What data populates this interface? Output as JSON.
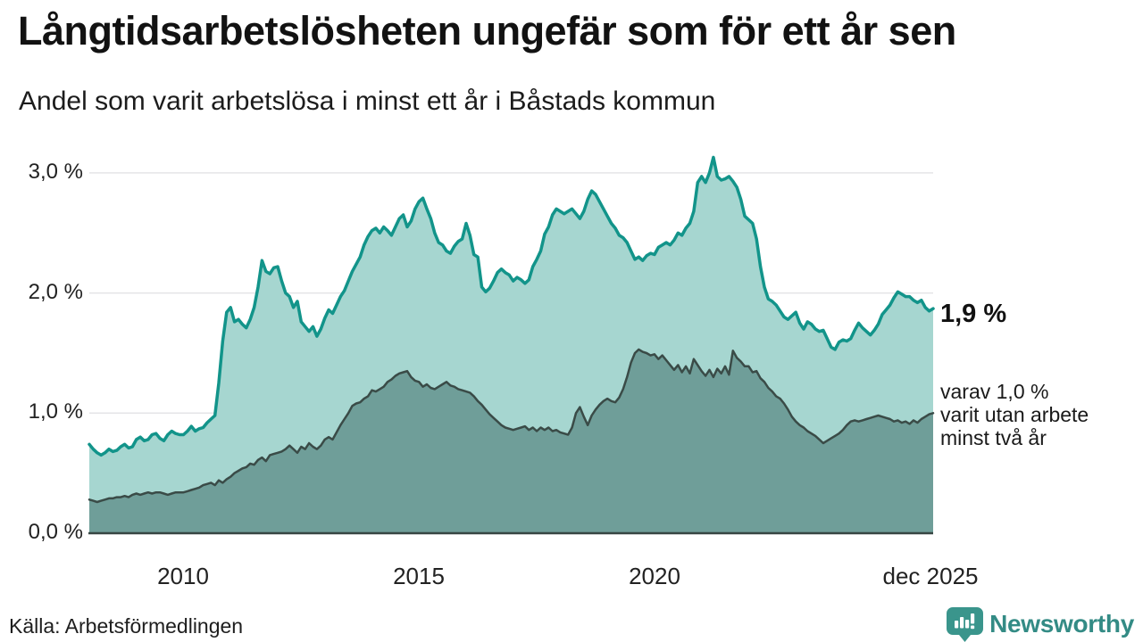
{
  "header": {
    "title": "Långtidsarbetslösheten ungefär som för ett år sen",
    "subtitle": "Andel som varit arbetslösa i minst ett år i Båstads kommun"
  },
  "chart_data": {
    "type": "area",
    "unit": "%",
    "x_range": [
      "jan 2008",
      "dec 2025"
    ],
    "x_ticks": [
      {
        "label": "2010"
      },
      {
        "label": "2015"
      },
      {
        "label": "2020"
      },
      {
        "label": "dec 2025"
      }
    ],
    "y_ticks": [
      {
        "label": "0,0 %",
        "value": 0
      },
      {
        "label": "1,0 %",
        "value": 1
      },
      {
        "label": "2,0 %",
        "value": 2
      },
      {
        "label": "3,0 %",
        "value": 3
      }
    ],
    "ylim": [
      0,
      3.3
    ],
    "grid": "horizontal",
    "grid_color": "#e4e4e7",
    "baseline_color": "#374643",
    "series": [
      {
        "name": "Andel som varit arbetslösa i minst ett år",
        "line_color": "#12948a",
        "fill_color": "#a6d6d0",
        "line_width": 3.5,
        "values": [
          0.74,
          0.7,
          0.67,
          0.65,
          0.67,
          0.7,
          0.68,
          0.69,
          0.72,
          0.74,
          0.71,
          0.72,
          0.78,
          0.8,
          0.77,
          0.78,
          0.82,
          0.83,
          0.79,
          0.77,
          0.82,
          0.85,
          0.83,
          0.82,
          0.82,
          0.85,
          0.89,
          0.85,
          0.87,
          0.88,
          0.92,
          0.95,
          0.98,
          1.25,
          1.6,
          1.84,
          1.88,
          1.76,
          1.78,
          1.74,
          1.71,
          1.78,
          1.88,
          2.05,
          2.27,
          2.18,
          2.16,
          2.21,
          2.22,
          2.1,
          2.0,
          1.97,
          1.88,
          1.93,
          1.76,
          1.72,
          1.68,
          1.72,
          1.64,
          1.7,
          1.79,
          1.86,
          1.83,
          1.9,
          1.97,
          2.02,
          2.1,
          2.18,
          2.24,
          2.3,
          2.4,
          2.47,
          2.52,
          2.54,
          2.5,
          2.55,
          2.52,
          2.48,
          2.55,
          2.62,
          2.65,
          2.55,
          2.6,
          2.7,
          2.76,
          2.79,
          2.7,
          2.62,
          2.5,
          2.42,
          2.4,
          2.35,
          2.33,
          2.39,
          2.43,
          2.45,
          2.58,
          2.48,
          2.32,
          2.3,
          2.05,
          2.01,
          2.04,
          2.1,
          2.17,
          2.2,
          2.17,
          2.15,
          2.1,
          2.13,
          2.11,
          2.08,
          2.11,
          2.22,
          2.28,
          2.35,
          2.49,
          2.55,
          2.65,
          2.7,
          2.68,
          2.66,
          2.68,
          2.7,
          2.66,
          2.62,
          2.68,
          2.78,
          2.85,
          2.82,
          2.76,
          2.7,
          2.64,
          2.58,
          2.54,
          2.48,
          2.46,
          2.42,
          2.35,
          2.28,
          2.3,
          2.27,
          2.31,
          2.33,
          2.32,
          2.38,
          2.4,
          2.42,
          2.4,
          2.44,
          2.5,
          2.48,
          2.54,
          2.58,
          2.68,
          2.92,
          2.97,
          2.92,
          3.0,
          3.13,
          2.97,
          2.94,
          2.95,
          2.97,
          2.93,
          2.88,
          2.78,
          2.64,
          2.61,
          2.58,
          2.45,
          2.22,
          2.05,
          1.95,
          1.93,
          1.9,
          1.85,
          1.8,
          1.78,
          1.81,
          1.84,
          1.75,
          1.7,
          1.76,
          1.74,
          1.7,
          1.68,
          1.69,
          1.62,
          1.55,
          1.53,
          1.59,
          1.61,
          1.6,
          1.62,
          1.69,
          1.75,
          1.71,
          1.68,
          1.65,
          1.69,
          1.74,
          1.82,
          1.86,
          1.9,
          1.96,
          2.01,
          1.99,
          1.97,
          1.97,
          1.94,
          1.92,
          1.94,
          1.88,
          1.85,
          1.87
        ]
      },
      {
        "name": "Andel som varit utan arbete minst två år",
        "line_color": "#3a4b47",
        "fill_color": "#6f9e99",
        "line_width": 2.5,
        "values": [
          0.28,
          0.27,
          0.26,
          0.27,
          0.28,
          0.29,
          0.29,
          0.3,
          0.3,
          0.31,
          0.3,
          0.32,
          0.33,
          0.32,
          0.33,
          0.34,
          0.33,
          0.34,
          0.34,
          0.33,
          0.32,
          0.33,
          0.34,
          0.34,
          0.34,
          0.35,
          0.36,
          0.37,
          0.38,
          0.4,
          0.41,
          0.42,
          0.4,
          0.44,
          0.42,
          0.45,
          0.47,
          0.5,
          0.52,
          0.54,
          0.55,
          0.58,
          0.57,
          0.61,
          0.63,
          0.6,
          0.65,
          0.66,
          0.67,
          0.68,
          0.7,
          0.73,
          0.7,
          0.67,
          0.72,
          0.7,
          0.75,
          0.72,
          0.7,
          0.73,
          0.78,
          0.8,
          0.78,
          0.84,
          0.9,
          0.95,
          1.0,
          1.06,
          1.08,
          1.09,
          1.12,
          1.14,
          1.19,
          1.18,
          1.2,
          1.22,
          1.26,
          1.28,
          1.31,
          1.33,
          1.34,
          1.35,
          1.3,
          1.27,
          1.26,
          1.22,
          1.24,
          1.21,
          1.2,
          1.22,
          1.24,
          1.26,
          1.23,
          1.22,
          1.2,
          1.19,
          1.18,
          1.17,
          1.14,
          1.1,
          1.07,
          1.03,
          0.99,
          0.96,
          0.93,
          0.9,
          0.88,
          0.87,
          0.86,
          0.87,
          0.88,
          0.89,
          0.86,
          0.88,
          0.85,
          0.88,
          0.86,
          0.88,
          0.85,
          0.86,
          0.84,
          0.83,
          0.82,
          0.88,
          1.0,
          1.05,
          0.97,
          0.9,
          0.98,
          1.03,
          1.07,
          1.1,
          1.12,
          1.1,
          1.09,
          1.13,
          1.2,
          1.3,
          1.42,
          1.5,
          1.53,
          1.51,
          1.5,
          1.48,
          1.49,
          1.45,
          1.48,
          1.44,
          1.4,
          1.36,
          1.4,
          1.34,
          1.39,
          1.33,
          1.45,
          1.4,
          1.35,
          1.31,
          1.36,
          1.3,
          1.37,
          1.33,
          1.39,
          1.32,
          1.52,
          1.46,
          1.43,
          1.39,
          1.39,
          1.34,
          1.35,
          1.29,
          1.26,
          1.21,
          1.18,
          1.14,
          1.12,
          1.08,
          1.03,
          0.97,
          0.93,
          0.9,
          0.88,
          0.85,
          0.83,
          0.81,
          0.78,
          0.75,
          0.77,
          0.79,
          0.81,
          0.83,
          0.86,
          0.9,
          0.93,
          0.94,
          0.93,
          0.94,
          0.95,
          0.96,
          0.97,
          0.98,
          0.97,
          0.96,
          0.95,
          0.93,
          0.94,
          0.92,
          0.93,
          0.91,
          0.94,
          0.92,
          0.95,
          0.97,
          0.99,
          1.0
        ]
      }
    ],
    "annotations": {
      "end_value_label": "1,9 %",
      "secondary_lines": [
        "varav 1,0 %",
        "varit utan arbete",
        "minst två år"
      ]
    }
  },
  "footer": {
    "source": "Källa: Arbetsförmedlingen",
    "brand": "Newsworthy",
    "brand_color": "#338b85",
    "brand_icon_color": "#3a958c"
  }
}
